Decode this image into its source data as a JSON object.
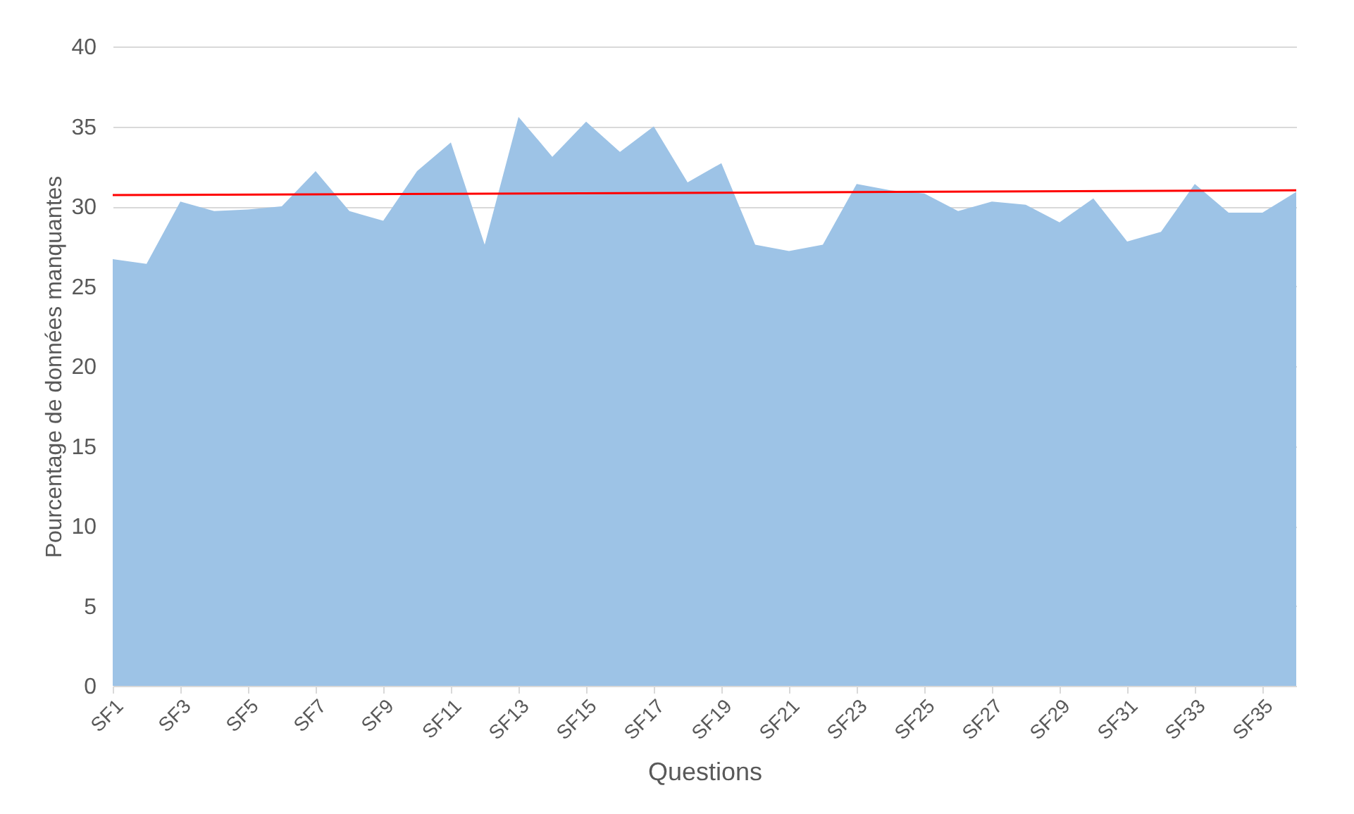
{
  "chart_data": {
    "type": "area",
    "xlabel": "Questions",
    "ylabel": "Pourcentage de données manquantes",
    "categories": [
      "SF1",
      null,
      "SF3",
      null,
      "SF5",
      null,
      "SF7",
      null,
      "SF9",
      null,
      "SF11",
      null,
      "SF13",
      null,
      "SF15",
      null,
      "SF17",
      null,
      "SF19",
      null,
      "SF21",
      null,
      "SF23",
      null,
      "SF25",
      null,
      "SF27",
      null,
      "SF29",
      null,
      "SF31",
      null,
      "SF33",
      null,
      "SF35",
      null
    ],
    "series": [
      {
        "color": "#9dc3e6",
        "values": [
          26.7,
          26.4,
          30.3,
          29.7,
          29.8,
          30.0,
          32.2,
          29.7,
          29.1,
          32.2,
          34.0,
          27.6,
          35.6,
          33.1,
          35.3,
          33.4,
          35.0,
          31.5,
          32.7,
          27.6,
          27.2,
          27.6,
          31.4,
          31.0,
          30.8,
          29.7,
          30.3,
          30.1,
          29.0,
          30.5,
          27.8,
          28.4,
          31.4,
          29.6,
          29.6,
          30.9
        ]
      },
      {
        "type": "line",
        "color": "#ff0000",
        "values": [
          30.7,
          null,
          null,
          null,
          null,
          null,
          null,
          null,
          null,
          null,
          null,
          null,
          null,
          null,
          null,
          null,
          null,
          null,
          null,
          null,
          null,
          null,
          null,
          null,
          null,
          null,
          null,
          null,
          null,
          null,
          null,
          null,
          null,
          null,
          null,
          31.0
        ]
      }
    ],
    "ylim": [
      0,
      40
    ],
    "yticks": [
      0,
      5,
      10,
      15,
      20,
      25,
      30,
      35,
      40
    ],
    "grid": "y"
  }
}
